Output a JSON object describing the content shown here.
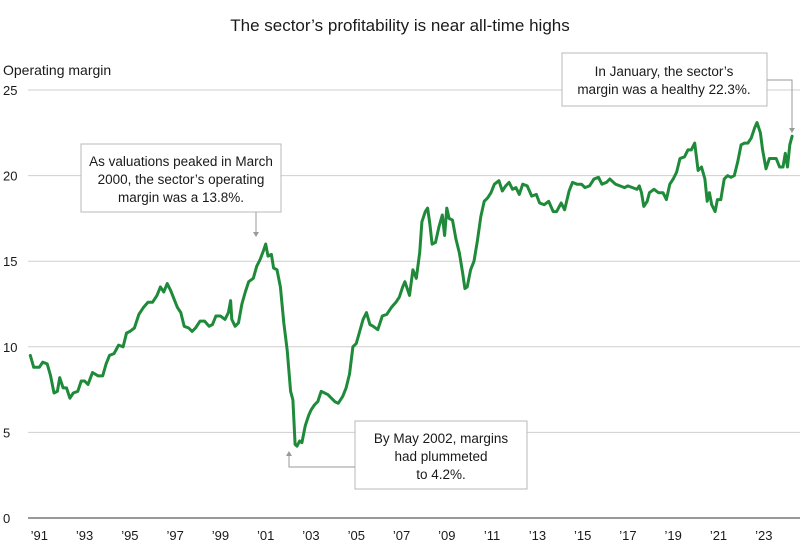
{
  "chart_data": {
    "type": "line",
    "title": "The sector’s profitability is near all-time highs",
    "ylabel": "Operating margin",
    "xlabel": "",
    "ylim": [
      0,
      25
    ],
    "yticks": [
      0,
      5,
      10,
      15,
      20,
      25
    ],
    "xlim": [
      1990.5,
      2024.6
    ],
    "xticks": [
      {
        "year": 1991,
        "label": "’91"
      },
      {
        "year": 1993,
        "label": "’93"
      },
      {
        "year": 1995,
        "label": "’95"
      },
      {
        "year": 1997,
        "label": "’97"
      },
      {
        "year": 1999,
        "label": "’99"
      },
      {
        "year": 2001,
        "label": "’01"
      },
      {
        "year": 2003,
        "label": "’03"
      },
      {
        "year": 2005,
        "label": "’05"
      },
      {
        "year": 2007,
        "label": "’07"
      },
      {
        "year": 2009,
        "label": "’09"
      },
      {
        "year": 2011,
        "label": "’11"
      },
      {
        "year": 2013,
        "label": "’13"
      },
      {
        "year": 2015,
        "label": "’15"
      },
      {
        "year": 2017,
        "label": "’17"
      },
      {
        "year": 2019,
        "label": "’19"
      },
      {
        "year": 2021,
        "label": "’21"
      },
      {
        "year": 2023,
        "label": "’23"
      }
    ],
    "grid": true,
    "series": [
      {
        "color": "#1f8a3a",
        "points": [
          [
            1990.6,
            9.5
          ],
          [
            1990.75,
            8.8
          ],
          [
            1991.0,
            8.8
          ],
          [
            1991.15,
            9.1
          ],
          [
            1991.35,
            9.0
          ],
          [
            1991.5,
            8.3
          ],
          [
            1991.65,
            7.3
          ],
          [
            1991.8,
            7.4
          ],
          [
            1991.9,
            8.2
          ],
          [
            1992.05,
            7.6
          ],
          [
            1992.2,
            7.6
          ],
          [
            1992.35,
            7.0
          ],
          [
            1992.5,
            7.3
          ],
          [
            1992.7,
            7.4
          ],
          [
            1992.85,
            8.0
          ],
          [
            1993.0,
            8.0
          ],
          [
            1993.15,
            7.8
          ],
          [
            1993.35,
            8.5
          ],
          [
            1993.6,
            8.3
          ],
          [
            1993.8,
            8.3
          ],
          [
            1993.95,
            9.0
          ],
          [
            1994.1,
            9.5
          ],
          [
            1994.3,
            9.6
          ],
          [
            1994.5,
            10.1
          ],
          [
            1994.7,
            10.0
          ],
          [
            1994.85,
            10.8
          ],
          [
            1995.0,
            10.9
          ],
          [
            1995.2,
            11.1
          ],
          [
            1995.4,
            11.9
          ],
          [
            1995.6,
            12.3
          ],
          [
            1995.8,
            12.6
          ],
          [
            1996.0,
            12.6
          ],
          [
            1996.2,
            13.0
          ],
          [
            1996.35,
            13.5
          ],
          [
            1996.5,
            13.2
          ],
          [
            1996.65,
            13.7
          ],
          [
            1996.8,
            13.3
          ],
          [
            1996.95,
            12.8
          ],
          [
            1997.1,
            12.3
          ],
          [
            1997.25,
            12.0
          ],
          [
            1997.4,
            11.2
          ],
          [
            1997.6,
            11.1
          ],
          [
            1997.75,
            10.9
          ],
          [
            1997.9,
            11.1
          ],
          [
            1998.1,
            11.5
          ],
          [
            1998.3,
            11.5
          ],
          [
            1998.5,
            11.2
          ],
          [
            1998.65,
            11.3
          ],
          [
            1998.8,
            11.8
          ],
          [
            1999.0,
            11.8
          ],
          [
            1999.2,
            11.6
          ],
          [
            1999.35,
            12.0
          ],
          [
            1999.45,
            12.7
          ],
          [
            1999.5,
            11.6
          ],
          [
            1999.65,
            11.2
          ],
          [
            1999.8,
            11.4
          ],
          [
            1999.95,
            12.5
          ],
          [
            2000.1,
            13.2
          ],
          [
            2000.25,
            13.8
          ],
          [
            2000.45,
            14.0
          ],
          [
            2000.6,
            14.7
          ],
          [
            2000.75,
            15.1
          ],
          [
            2000.9,
            15.6
          ],
          [
            2001.0,
            16.0
          ],
          [
            2001.1,
            15.3
          ],
          [
            2001.25,
            15.4
          ],
          [
            2001.35,
            14.6
          ],
          [
            2001.5,
            14.5
          ],
          [
            2001.65,
            13.5
          ],
          [
            2001.8,
            11.4
          ],
          [
            2001.95,
            9.8
          ],
          [
            2002.1,
            7.4
          ],
          [
            2002.2,
            6.9
          ],
          [
            2002.3,
            4.3
          ],
          [
            2002.38,
            4.2
          ],
          [
            2002.5,
            4.5
          ],
          [
            2002.6,
            4.4
          ],
          [
            2002.75,
            5.4
          ],
          [
            2002.9,
            6.0
          ],
          [
            2003.0,
            6.3
          ],
          [
            2003.15,
            6.6
          ],
          [
            2003.3,
            6.8
          ],
          [
            2003.45,
            7.4
          ],
          [
            2003.6,
            7.3
          ],
          [
            2003.75,
            7.2
          ],
          [
            2003.9,
            7.0
          ],
          [
            2004.05,
            6.8
          ],
          [
            2004.2,
            6.7
          ],
          [
            2004.4,
            7.1
          ],
          [
            2004.55,
            7.6
          ],
          [
            2004.7,
            8.4
          ],
          [
            2004.85,
            10.0
          ],
          [
            2005.0,
            10.2
          ],
          [
            2005.15,
            10.9
          ],
          [
            2005.3,
            11.6
          ],
          [
            2005.45,
            12.0
          ],
          [
            2005.6,
            11.3
          ],
          [
            2005.75,
            11.2
          ],
          [
            2005.95,
            11.0
          ],
          [
            2006.15,
            11.8
          ],
          [
            2006.35,
            11.9
          ],
          [
            2006.55,
            12.3
          ],
          [
            2006.75,
            12.6
          ],
          [
            2006.9,
            12.9
          ],
          [
            2007.05,
            13.5
          ],
          [
            2007.15,
            13.8
          ],
          [
            2007.35,
            13.0
          ],
          [
            2007.5,
            14.5
          ],
          [
            2007.65,
            14.0
          ],
          [
            2007.8,
            15.5
          ],
          [
            2007.9,
            17.3
          ],
          [
            2008.05,
            17.9
          ],
          [
            2008.15,
            18.1
          ],
          [
            2008.25,
            17.2
          ],
          [
            2008.35,
            16.0
          ],
          [
            2008.5,
            16.1
          ],
          [
            2008.65,
            17.0
          ],
          [
            2008.8,
            17.7
          ],
          [
            2008.9,
            16.5
          ],
          [
            2009.0,
            18.1
          ],
          [
            2009.1,
            17.5
          ],
          [
            2009.25,
            17.4
          ],
          [
            2009.4,
            16.3
          ],
          [
            2009.55,
            15.5
          ],
          [
            2009.7,
            14.3
          ],
          [
            2009.8,
            13.4
          ],
          [
            2009.9,
            13.5
          ],
          [
            2010.05,
            14.5
          ],
          [
            2010.2,
            15.0
          ],
          [
            2010.35,
            16.2
          ],
          [
            2010.5,
            17.6
          ],
          [
            2010.65,
            18.5
          ],
          [
            2010.8,
            18.7
          ],
          [
            2010.95,
            19.0
          ],
          [
            2011.1,
            19.5
          ],
          [
            2011.3,
            19.7
          ],
          [
            2011.45,
            19.1
          ],
          [
            2011.6,
            19.4
          ],
          [
            2011.75,
            19.6
          ],
          [
            2011.9,
            19.2
          ],
          [
            2012.05,
            19.3
          ],
          [
            2012.2,
            18.9
          ],
          [
            2012.35,
            19.5
          ],
          [
            2012.55,
            19.4
          ],
          [
            2012.75,
            18.8
          ],
          [
            2012.95,
            18.9
          ],
          [
            2013.1,
            18.4
          ],
          [
            2013.3,
            18.3
          ],
          [
            2013.5,
            18.5
          ],
          [
            2013.7,
            17.9
          ],
          [
            2013.85,
            17.9
          ],
          [
            2014.05,
            18.4
          ],
          [
            2014.2,
            18.0
          ],
          [
            2014.4,
            19.1
          ],
          [
            2014.55,
            19.6
          ],
          [
            2014.75,
            19.5
          ],
          [
            2014.95,
            19.5
          ],
          [
            2015.1,
            19.3
          ],
          [
            2015.3,
            19.4
          ],
          [
            2015.5,
            19.8
          ],
          [
            2015.7,
            19.9
          ],
          [
            2015.85,
            19.5
          ],
          [
            2016.05,
            19.6
          ],
          [
            2016.2,
            19.8
          ],
          [
            2016.45,
            19.5
          ],
          [
            2016.65,
            19.4
          ],
          [
            2016.85,
            19.3
          ],
          [
            2017.0,
            19.4
          ],
          [
            2017.2,
            19.3
          ],
          [
            2017.4,
            19.2
          ],
          [
            2017.5,
            19.4
          ],
          [
            2017.6,
            19.0
          ],
          [
            2017.7,
            18.2
          ],
          [
            2017.85,
            18.5
          ],
          [
            2017.95,
            19.0
          ],
          [
            2018.15,
            19.2
          ],
          [
            2018.35,
            19.0
          ],
          [
            2018.55,
            19.0
          ],
          [
            2018.7,
            18.6
          ],
          [
            2018.85,
            19.5
          ],
          [
            2019.0,
            19.8
          ],
          [
            2019.15,
            20.2
          ],
          [
            2019.3,
            21.0
          ],
          [
            2019.5,
            21.1
          ],
          [
            2019.65,
            21.5
          ],
          [
            2019.8,
            21.5
          ],
          [
            2019.95,
            21.9
          ],
          [
            2020.1,
            20.3
          ],
          [
            2020.25,
            20.5
          ],
          [
            2020.4,
            19.8
          ],
          [
            2020.5,
            18.5
          ],
          [
            2020.6,
            19.0
          ],
          [
            2020.7,
            18.3
          ],
          [
            2020.85,
            17.9
          ],
          [
            2020.95,
            18.6
          ],
          [
            2021.1,
            18.6
          ],
          [
            2021.25,
            19.8
          ],
          [
            2021.4,
            20.0
          ],
          [
            2021.55,
            19.9
          ],
          [
            2021.7,
            20.0
          ],
          [
            2021.85,
            20.8
          ],
          [
            2022.0,
            21.8
          ],
          [
            2022.15,
            21.9
          ],
          [
            2022.3,
            21.9
          ],
          [
            2022.45,
            22.2
          ],
          [
            2022.6,
            22.8
          ],
          [
            2022.7,
            23.1
          ],
          [
            2022.85,
            22.5
          ],
          [
            2022.95,
            21.5
          ],
          [
            2023.1,
            20.4
          ],
          [
            2023.25,
            21.0
          ],
          [
            2023.4,
            21.0
          ],
          [
            2023.55,
            21.0
          ],
          [
            2023.7,
            20.5
          ],
          [
            2023.85,
            20.5
          ],
          [
            2023.95,
            21.3
          ],
          [
            2024.05,
            20.5
          ],
          [
            2024.15,
            21.8
          ],
          [
            2024.25,
            22.3
          ]
        ]
      }
    ],
    "annotations": [
      {
        "lines": [
          "As valuations peaked in March",
          "2000, the sector’s operating",
          "margin was a 13.8%."
        ],
        "target": [
          2001.0,
          16.0
        ]
      },
      {
        "lines": [
          "By May 2002, margins",
          "had plummeted",
          "to 4.2%."
        ],
        "target": [
          2002.38,
          4.2
        ]
      },
      {
        "lines": [
          "In January, the sector’s",
          "margin was a healthy 22.3%."
        ],
        "target": [
          2024.25,
          22.3
        ]
      }
    ]
  }
}
